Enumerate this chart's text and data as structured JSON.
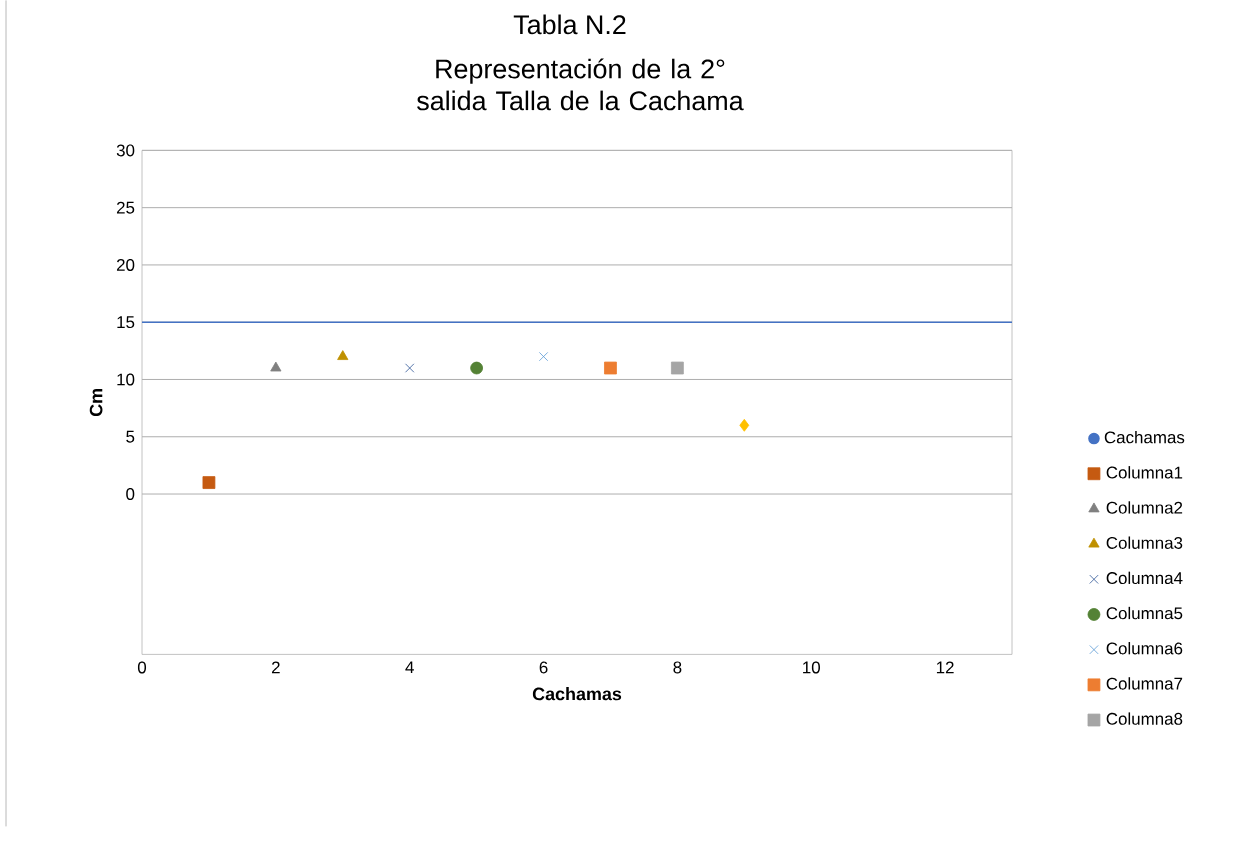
{
  "chart_data": {
    "type": "scatter",
    "title": "Tabla N.2",
    "subtitle": "Representación de la 2° salida Talla de la Cachama",
    "xlabel": "Cachamas",
    "ylabel": "Cm",
    "xlim": [
      0,
      13
    ],
    "xticks": [
      0,
      2,
      4,
      6,
      8,
      10,
      12
    ],
    "ylim": [
      -14,
      30
    ],
    "yticks": [
      0,
      5,
      10,
      15,
      20,
      25,
      30
    ],
    "grid": "y",
    "legend": "right",
    "series": [
      {
        "name": "Cachamas",
        "type": "line",
        "color": "#4472c4",
        "x": [
          0,
          13
        ],
        "values": [
          15,
          15
        ]
      },
      {
        "name": "Columna1",
        "color": "#c55a11",
        "marker": "square",
        "x": [
          1
        ],
        "values": [
          1
        ]
      },
      {
        "name": "Columna2",
        "color": "#808080",
        "marker": "triangle",
        "x": [
          2
        ],
        "values": [
          11
        ]
      },
      {
        "name": "Columna3",
        "color": "#bf9000",
        "marker": "triangle",
        "x": [
          3
        ],
        "values": [
          12
        ]
      },
      {
        "name": "Columna4",
        "color": "#2f5597",
        "marker": "cross",
        "x": [
          4
        ],
        "values": [
          11
        ]
      },
      {
        "name": "Columna5",
        "color": "#548235",
        "marker": "circle",
        "x": [
          5
        ],
        "values": [
          11
        ]
      },
      {
        "name": "Columna6",
        "color": "#5b9bd5",
        "marker": "cross",
        "x": [
          6
        ],
        "values": [
          12
        ]
      },
      {
        "name": "Columna7",
        "color": "#ed7d31",
        "marker": "square",
        "x": [
          7
        ],
        "values": [
          11
        ]
      },
      {
        "name": "Columna8",
        "color": "#a5a5a5",
        "marker": "square",
        "x": [
          8
        ],
        "values": [
          11
        ]
      },
      {
        "color": "#ffc000",
        "marker": "diamond",
        "x": [
          9
        ],
        "values": [
          6
        ]
      }
    ]
  }
}
